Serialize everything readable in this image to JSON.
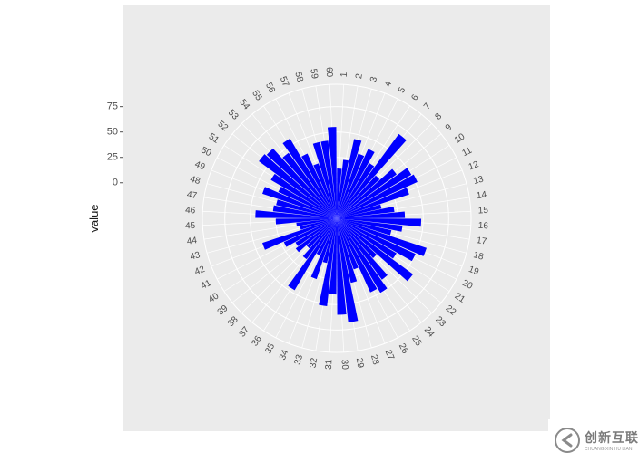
{
  "chart_data": {
    "type": "bar",
    "coord": "polar",
    "ylabel": "value",
    "bar_color": "#0000ff",
    "panel_color": "#ebebeb",
    "grid_color": "#ffffff",
    "grid": true,
    "r_ticks": [
      0,
      25,
      50,
      75
    ],
    "rlim": [
      -35,
      97
    ],
    "categories": [
      "1",
      "2",
      "3",
      "4",
      "5",
      "6",
      "7",
      "8",
      "9",
      "10",
      "11",
      "12",
      "13",
      "14",
      "15",
      "16",
      "17",
      "18",
      "19",
      "20",
      "21",
      "22",
      "23",
      "24",
      "25",
      "26",
      "27",
      "28",
      "29",
      "30",
      "31",
      "32",
      "33",
      "34",
      "35",
      "36",
      "37",
      "38",
      "39",
      "40",
      "41",
      "42",
      "43",
      "44",
      "45",
      "46",
      "47",
      "48",
      "49",
      "50",
      "51",
      "52",
      "53",
      "54",
      "55",
      "56",
      "57",
      "58",
      "59",
      "60"
    ],
    "series": [
      {
        "values": [
          14,
          23,
          45,
          32,
          40,
          28,
          68,
          22,
          38,
          50,
          52,
          40,
          10,
          22,
          32,
          48,
          30,
          20,
          58,
          50,
          33,
          58,
          18,
          40,
          50,
          45,
          18,
          30,
          68,
          60,
          40,
          52,
          10,
          28,
          5,
          47,
          15,
          5,
          15,
          12,
          22,
          42,
          2,
          5,
          25,
          45,
          28,
          26,
          42,
          28,
          40,
          60,
          58,
          45,
          56,
          35,
          22,
          42,
          42,
          55
        ]
      }
    ]
  },
  "watermark": {
    "text_cn": "创新互联",
    "text_en": "CHUANG XIN HU LIAN"
  }
}
